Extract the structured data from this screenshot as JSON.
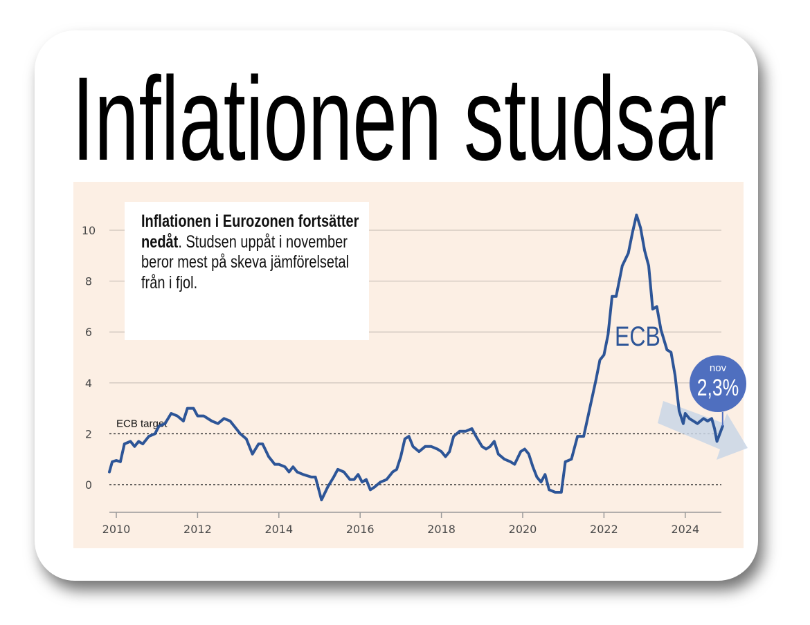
{
  "headline": "Inflationen studsar",
  "note": {
    "bold": "Inflationen i Eurozonen fortsätter nedåt",
    "rest": ". Studsen uppåt i november beror mest på skeva jämförelsetal från i fjol."
  },
  "colors": {
    "line": "#2d5597",
    "panel": "#fcefe4",
    "badge": "#4f6fbf",
    "arrow": "#c9d6e6"
  },
  "chart_data": {
    "type": "line",
    "title": "Inflationen studsar",
    "xlabel": "",
    "ylabel": "",
    "xlim": [
      2009.83,
      2025
    ],
    "ylim": [
      -1,
      10.8
    ],
    "xticks": [
      2010,
      2012,
      2014,
      2016,
      2018,
      2020,
      2022,
      2024
    ],
    "xtick_labels": [
      "2010",
      "2012",
      "2014",
      "2016",
      "2018",
      "2020",
      "2022",
      "2024"
    ],
    "yticks": [
      0,
      2,
      4,
      6,
      8,
      10
    ],
    "ytick_labels": [
      "0",
      "2",
      "4",
      "6",
      "8",
      "10"
    ],
    "grid": true,
    "reference_lines": [
      {
        "y": 2,
        "label": "ECB target"
      },
      {
        "y": 0,
        "label": ""
      }
    ],
    "series_label": "ECB",
    "annotation": {
      "month": "nov",
      "value_label": "2,3%",
      "x": 2024.92,
      "y": 2.3
    },
    "series": [
      {
        "name": "ECB",
        "points": [
          [
            2009.83,
            0.5
          ],
          [
            2009.9,
            0.9
          ],
          [
            2010.0,
            0.95
          ],
          [
            2010.1,
            0.9
          ],
          [
            2010.2,
            1.6
          ],
          [
            2010.35,
            1.7
          ],
          [
            2010.45,
            1.5
          ],
          [
            2010.55,
            1.7
          ],
          [
            2010.65,
            1.6
          ],
          [
            2010.8,
            1.9
          ],
          [
            2010.95,
            2.0
          ],
          [
            2011.05,
            2.3
          ],
          [
            2011.2,
            2.4
          ],
          [
            2011.35,
            2.8
          ],
          [
            2011.5,
            2.7
          ],
          [
            2011.65,
            2.5
          ],
          [
            2011.75,
            3.0
          ],
          [
            2011.9,
            3.0
          ],
          [
            2012.0,
            2.7
          ],
          [
            2012.15,
            2.7
          ],
          [
            2012.35,
            2.5
          ],
          [
            2012.5,
            2.4
          ],
          [
            2012.65,
            2.6
          ],
          [
            2012.8,
            2.5
          ],
          [
            2012.95,
            2.2
          ],
          [
            2013.05,
            2.0
          ],
          [
            2013.2,
            1.8
          ],
          [
            2013.35,
            1.2
          ],
          [
            2013.5,
            1.6
          ],
          [
            2013.6,
            1.6
          ],
          [
            2013.75,
            1.1
          ],
          [
            2013.9,
            0.8
          ],
          [
            2014.0,
            0.8
          ],
          [
            2014.15,
            0.7
          ],
          [
            2014.25,
            0.5
          ],
          [
            2014.35,
            0.7
          ],
          [
            2014.45,
            0.5
          ],
          [
            2014.6,
            0.4
          ],
          [
            2014.8,
            0.3
          ],
          [
            2014.9,
            0.3
          ],
          [
            2015.05,
            -0.6
          ],
          [
            2015.2,
            -0.1
          ],
          [
            2015.35,
            0.3
          ],
          [
            2015.45,
            0.6
          ],
          [
            2015.6,
            0.5
          ],
          [
            2015.75,
            0.2
          ],
          [
            2015.85,
            0.2
          ],
          [
            2015.95,
            0.4
          ],
          [
            2016.05,
            0.1
          ],
          [
            2016.15,
            0.2
          ],
          [
            2016.25,
            -0.2
          ],
          [
            2016.35,
            -0.1
          ],
          [
            2016.5,
            0.1
          ],
          [
            2016.65,
            0.2
          ],
          [
            2016.8,
            0.5
          ],
          [
            2016.9,
            0.6
          ],
          [
            2017.0,
            1.1
          ],
          [
            2017.1,
            1.8
          ],
          [
            2017.2,
            1.9
          ],
          [
            2017.3,
            1.5
          ],
          [
            2017.45,
            1.3
          ],
          [
            2017.6,
            1.5
          ],
          [
            2017.75,
            1.5
          ],
          [
            2017.9,
            1.4
          ],
          [
            2018.0,
            1.3
          ],
          [
            2018.1,
            1.1
          ],
          [
            2018.2,
            1.3
          ],
          [
            2018.3,
            1.9
          ],
          [
            2018.45,
            2.1
          ],
          [
            2018.6,
            2.1
          ],
          [
            2018.75,
            2.2
          ],
          [
            2018.85,
            1.9
          ],
          [
            2019.0,
            1.5
          ],
          [
            2019.1,
            1.4
          ],
          [
            2019.2,
            1.5
          ],
          [
            2019.3,
            1.7
          ],
          [
            2019.4,
            1.2
          ],
          [
            2019.55,
            1.0
          ],
          [
            2019.7,
            0.9
          ],
          [
            2019.8,
            0.8
          ],
          [
            2019.95,
            1.3
          ],
          [
            2020.05,
            1.4
          ],
          [
            2020.15,
            1.2
          ],
          [
            2020.25,
            0.7
          ],
          [
            2020.35,
            0.3
          ],
          [
            2020.45,
            0.1
          ],
          [
            2020.55,
            0.4
          ],
          [
            2020.65,
            -0.2
          ],
          [
            2020.8,
            -0.3
          ],
          [
            2020.95,
            -0.3
          ],
          [
            2021.05,
            0.9
          ],
          [
            2021.2,
            1.0
          ],
          [
            2021.35,
            1.9
          ],
          [
            2021.5,
            1.9
          ],
          [
            2021.65,
            3.0
          ],
          [
            2021.8,
            4.1
          ],
          [
            2021.9,
            4.9
          ],
          [
            2022.0,
            5.1
          ],
          [
            2022.1,
            5.9
          ],
          [
            2022.2,
            7.4
          ],
          [
            2022.3,
            7.4
          ],
          [
            2022.45,
            8.6
          ],
          [
            2022.6,
            9.1
          ],
          [
            2022.7,
            9.9
          ],
          [
            2022.8,
            10.6
          ],
          [
            2022.9,
            10.1
          ],
          [
            2023.0,
            9.2
          ],
          [
            2023.1,
            8.6
          ],
          [
            2023.2,
            6.9
          ],
          [
            2023.3,
            7.0
          ],
          [
            2023.4,
            6.1
          ],
          [
            2023.55,
            5.3
          ],
          [
            2023.65,
            5.2
          ],
          [
            2023.75,
            4.3
          ],
          [
            2023.85,
            2.9
          ],
          [
            2023.95,
            2.4
          ],
          [
            2024.0,
            2.8
          ],
          [
            2024.1,
            2.6
          ],
          [
            2024.3,
            2.4
          ],
          [
            2024.45,
            2.6
          ],
          [
            2024.55,
            2.5
          ],
          [
            2024.65,
            2.6
          ],
          [
            2024.72,
            2.2
          ],
          [
            2024.78,
            1.7
          ],
          [
            2024.92,
            2.3
          ]
        ]
      }
    ]
  }
}
